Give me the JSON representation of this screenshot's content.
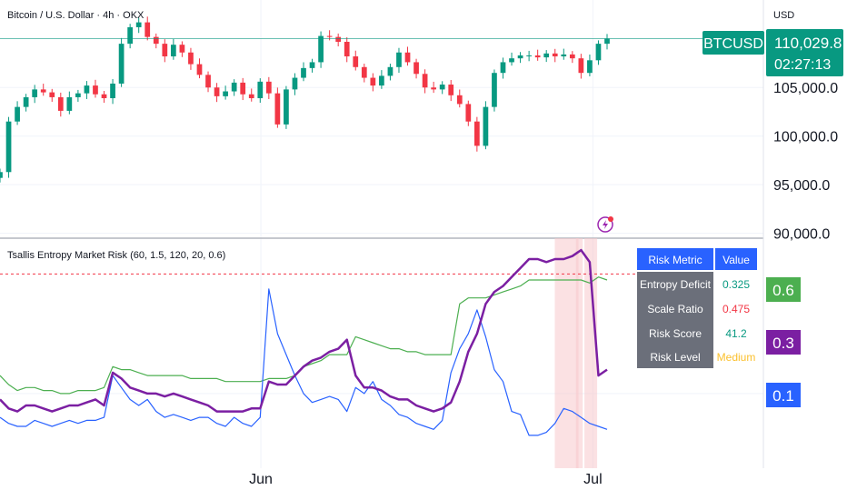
{
  "header": {
    "symbol_title": "Bitcoin / U.S. Dollar · 4h · OKX",
    "currency": "USD",
    "indicator_title": "Tsallis Entropy Market Risk (60, 1.5, 120, 20, 0.6)"
  },
  "price_tag": {
    "symbol": "BTCUSD",
    "price": "110,029.8",
    "countdown": "02:27:13",
    "color": "#089981"
  },
  "colors": {
    "up": "#089981",
    "down": "#f23645",
    "purple": "#7b1fa2",
    "green_line": "#4caf50",
    "blue_line": "#2962ff",
    "shade": "#f8c9cc",
    "table_header": "#2962ff",
    "table_body": "#6b6f7a",
    "medium": "#fbc02d"
  },
  "table": {
    "header": [
      "Risk Metric",
      "Value"
    ],
    "rows": [
      {
        "label": "Entropy Deficit",
        "value": "0.325",
        "color": "#089981"
      },
      {
        "label": "Scale Ratio",
        "value": "0.475",
        "color": "#f23645"
      },
      {
        "label": "Risk Score",
        "value": "41.2",
        "color": "#089981"
      },
      {
        "label": "Risk Level",
        "value": "Medium",
        "color": "#fbc02d"
      }
    ]
  },
  "chart_data": [
    {
      "type": "candlestick",
      "title": "Bitcoin / U.S. Dollar · 4h · OKX",
      "y_ticks": [
        "90,000.0",
        "95,000.0",
        "100,000.0",
        "105,000.0"
      ],
      "y_tick_values": [
        90000,
        95000,
        100000,
        105000
      ],
      "ylim": [
        89500,
        114000
      ],
      "x_ticks": [
        "Jun",
        "Jul"
      ],
      "x_tick_pos": [
        0.308,
        0.7
      ],
      "last_price": 110029.8,
      "close_series": [
        96300,
        101500,
        103000,
        104000,
        104800,
        104500,
        104000,
        102600,
        104000,
        104400,
        105200,
        104300,
        103900,
        105400,
        109500,
        111200,
        111700,
        110200,
        109500,
        108200,
        109400,
        108600,
        107400,
        106300,
        105000,
        104100,
        104600,
        105500,
        104300,
        103900,
        105600,
        104400,
        101200,
        104800,
        106000,
        107000,
        107600,
        110300,
        110200,
        109700,
        108200,
        107100,
        106000,
        105200,
        106200,
        107100,
        108600,
        107600,
        106400,
        105000,
        104800,
        105300,
        104200,
        103300,
        101500,
        99000,
        103000,
        106500,
        107600,
        108000,
        108300,
        108300,
        108100,
        108500,
        108200,
        108400,
        108000,
        106500,
        107800,
        109500,
        110030
      ],
      "price_line": 110029.8
    },
    {
      "type": "line",
      "title": "Tsallis Entropy Market Risk (60, 1.5, 120, 20, 0.6)",
      "y_ticks": [
        "0.2"
      ],
      "y_tick_values": [
        0.2
      ],
      "ylim": [
        -0.05,
        0.72
      ],
      "threshold": 0.6,
      "shaded_ranges": [
        [
          0.655,
          0.683
        ],
        [
          0.68,
          0.688
        ],
        [
          0.69,
          0.705
        ]
      ],
      "series": [
        {
          "name": "",
          "color": "#7b1fa2",
          "values": [
            0.18,
            0.15,
            0.14,
            0.16,
            0.16,
            0.15,
            0.14,
            0.15,
            0.16,
            0.16,
            0.17,
            0.18,
            0.16,
            0.27,
            0.25,
            0.22,
            0.21,
            0.2,
            0.2,
            0.19,
            0.2,
            0.19,
            0.18,
            0.17,
            0.16,
            0.14,
            0.14,
            0.14,
            0.14,
            0.15,
            0.15,
            0.24,
            0.23,
            0.23,
            0.26,
            0.29,
            0.31,
            0.32,
            0.34,
            0.35,
            0.38,
            0.26,
            0.22,
            0.22,
            0.21,
            0.19,
            0.18,
            0.18,
            0.16,
            0.15,
            0.14,
            0.15,
            0.17,
            0.24,
            0.34,
            0.4,
            0.5,
            0.54,
            0.56,
            0.59,
            0.62,
            0.65,
            0.65,
            0.64,
            0.65,
            0.65,
            0.66,
            0.68,
            0.64,
            0.26,
            0.28
          ]
        },
        {
          "name": "",
          "color": "#4caf50",
          "values": [
            0.26,
            0.23,
            0.21,
            0.22,
            0.22,
            0.21,
            0.21,
            0.2,
            0.2,
            0.21,
            0.21,
            0.21,
            0.22,
            0.29,
            0.28,
            0.28,
            0.27,
            0.26,
            0.26,
            0.26,
            0.26,
            0.26,
            0.25,
            0.25,
            0.25,
            0.25,
            0.24,
            0.24,
            0.24,
            0.24,
            0.24,
            0.25,
            0.25,
            0.25,
            0.26,
            0.29,
            0.3,
            0.31,
            0.33,
            0.33,
            0.33,
            0.39,
            0.38,
            0.37,
            0.36,
            0.35,
            0.35,
            0.34,
            0.34,
            0.33,
            0.33,
            0.33,
            0.33,
            0.5,
            0.52,
            0.52,
            0.52,
            0.53,
            0.54,
            0.55,
            0.56,
            0.58,
            0.58,
            0.58,
            0.58,
            0.58,
            0.58,
            0.58,
            0.57,
            0.59,
            0.58
          ]
        },
        {
          "name": "",
          "color": "#2962ff",
          "values": [
            0.12,
            0.1,
            0.09,
            0.09,
            0.11,
            0.1,
            0.09,
            0.1,
            0.11,
            0.1,
            0.11,
            0.11,
            0.12,
            0.26,
            0.22,
            0.18,
            0.16,
            0.18,
            0.14,
            0.12,
            0.13,
            0.12,
            0.11,
            0.12,
            0.12,
            0.1,
            0.09,
            0.12,
            0.1,
            0.09,
            0.12,
            0.55,
            0.4,
            0.33,
            0.26,
            0.2,
            0.17,
            0.18,
            0.19,
            0.18,
            0.14,
            0.22,
            0.2,
            0.24,
            0.18,
            0.16,
            0.13,
            0.12,
            0.1,
            0.09,
            0.08,
            0.11,
            0.27,
            0.35,
            0.4,
            0.48,
            0.39,
            0.28,
            0.24,
            0.14,
            0.13,
            0.06,
            0.06,
            0.07,
            0.1,
            0.15,
            0.14,
            0.12,
            0.1,
            0.09,
            0.08
          ]
        }
      ]
    }
  ],
  "right_labels": [
    {
      "text": "0.6",
      "color": "#4caf50"
    },
    {
      "text": "0.3",
      "color": "#7b1fa2"
    },
    {
      "text": "0.1",
      "color": "#2962ff"
    }
  ]
}
